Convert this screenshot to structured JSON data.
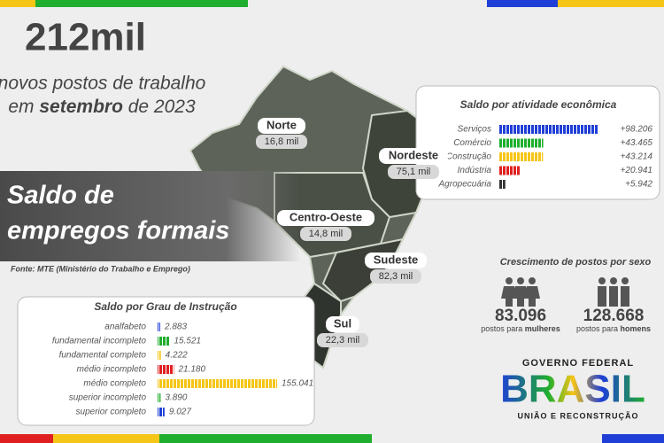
{
  "headline": "212mil",
  "subtitle": {
    "line1": "novos postos de trabalho",
    "line2": [
      "em ",
      "setembro",
      " de 2023"
    ]
  },
  "title": [
    "Saldo de",
    "empregos formais"
  ],
  "source": "Fonte: MTE (Ministério do Trabalho e Emprego)",
  "regions": [
    {
      "name": "Norte",
      "value": "16,8 mil"
    },
    {
      "name": "Nordeste",
      "value": "75,1 mil"
    },
    {
      "name": "Centro-Oeste",
      "value": "14,8 mil"
    },
    {
      "name": "Sudeste",
      "value": "82,3 mil"
    },
    {
      "name": "Sul",
      "value": "22,3 mil"
    }
  ],
  "activity_chart": {
    "type": "bar",
    "title": "Saldo por atividade econômica",
    "categories": [
      "Serviços",
      "Comércio",
      "Construção",
      "Indústria",
      "Agropecuária"
    ],
    "values": [
      98206,
      43465,
      43214,
      20941,
      5942
    ],
    "value_labels": [
      "+98.206",
      "+43.465",
      "+43.214",
      "+20.941",
      "+5.942"
    ],
    "colors": [
      "#1f3fd6",
      "#1fae2e",
      "#f5c518",
      "#e02020",
      "#333333"
    ]
  },
  "education_chart": {
    "type": "bar",
    "title": "Saldo por Grau de Instrução",
    "categories": [
      "analfabeto",
      "fundamental incompleto",
      "fundamental completo",
      "médio incompleto",
      "médio completo",
      "superior incompleto",
      "superior completo"
    ],
    "values": [
      2883,
      15521,
      4222,
      21180,
      155041,
      3890,
      9027
    ],
    "value_labels": [
      "2.883",
      "15.521",
      "4.222",
      "21.180",
      "155.041",
      "3.890",
      "9.027"
    ],
    "colors": [
      "#1f3fd6",
      "#1fae2e",
      "#f5c518",
      "#e02020",
      "#f5c518",
      "#1fae2e",
      "#1f3fd6"
    ]
  },
  "sex": {
    "title": "Crescimento de postos por sexo",
    "items": [
      {
        "value": "83.096",
        "caption": [
          "postos para ",
          "mulheres"
        ]
      },
      {
        "value": "128.668",
        "caption": [
          "postos para ",
          "homens"
        ]
      }
    ]
  },
  "logo": {
    "top": "GOVERNO FEDERAL",
    "main": "BRASIL",
    "bottom": "UNIÃO E RECONSTRUÇÃO"
  }
}
